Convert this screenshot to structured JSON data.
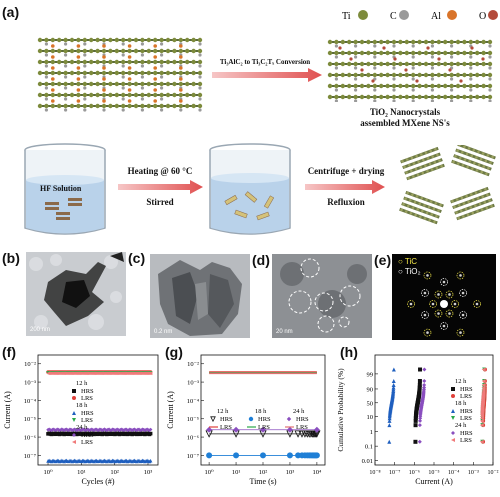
{
  "panel_a": {
    "label": "(a)",
    "legend": [
      {
        "symbol": "Ti",
        "color": "#7d8b3c"
      },
      {
        "symbol": "C",
        "color": "#9a9a9a"
      },
      {
        "symbol": "Al",
        "color": "#d9742a"
      },
      {
        "symbol": "O",
        "color": "#b34a3a"
      }
    ],
    "conversion_text": "Ti₃AlC₂ to Ti₃C₂Tₓ Conversion",
    "product_caption_1": "TiO₂ Nanocrystals",
    "product_caption_2": "assembled MXene NS's",
    "beaker_label": "HF Solution",
    "step1_top": "Heating @ 60 °C",
    "step1_bottom": "Stirred",
    "step2_top": "Centrifuge + drying",
    "step2_bottom": "Refluxion"
  },
  "panel_b": {
    "label": "(b)",
    "scale": "200 nm"
  },
  "panel_c": {
    "label": "(c)",
    "scale": "0.2 nm"
  },
  "panel_d": {
    "label": "(d)",
    "scale": "20 nm"
  },
  "panel_e": {
    "label": "(e)",
    "legend_tic": "TiC",
    "legend_tio2": "TiO₂"
  },
  "chart_data": [
    {
      "panel": "(f)",
      "type": "scatter",
      "xlabel": "Cycles (#)",
      "ylabel": "Current (A)",
      "xscale": "log",
      "yscale": "log",
      "xlim": [
        0.5,
        2000
      ],
      "ylim": [
        3e-08,
        0.03
      ],
      "xticks": [
        "10⁰",
        "10¹",
        "10²",
        "10³"
      ],
      "yticks": [
        "10⁻⁷",
        "10⁻⁶",
        "10⁻⁵",
        "10⁻⁴",
        "10⁻³",
        "10⁻²"
      ],
      "legend_groups": [
        "12 h",
        "18 h",
        "24 h"
      ],
      "series": [
        {
          "name": "HRS",
          "group": "12 h",
          "marker": "square",
          "color": "#111111",
          "y": 1.5e-06
        },
        {
          "name": "LRS",
          "group": "12 h",
          "marker": "circle",
          "color": "#e0403a",
          "y": 0.0035
        },
        {
          "name": "HRS",
          "group": "18 h",
          "marker": "triangle",
          "color": "#1f5fbf",
          "y": 5e-08
        },
        {
          "name": "LRS",
          "group": "18 h",
          "marker": "triangle-down",
          "color": "#2aa84a",
          "y": 0.0032
        },
        {
          "name": "HRS",
          "group": "24 h",
          "marker": "diamond",
          "color": "#8a4fbf",
          "y": 2.5e-06
        },
        {
          "name": "LRS",
          "group": "24 h",
          "marker": "left-triangle",
          "color": "#f07a7a",
          "y": 0.003
        }
      ]
    },
    {
      "panel": "(g)",
      "type": "scatter",
      "xlabel": "Time (s)",
      "ylabel": "Current (A)",
      "xscale": "log",
      "yscale": "log",
      "xlim": [
        0.5,
        20000
      ],
      "ylim": [
        3e-08,
        0.03
      ],
      "xticks": [
        "10⁰",
        "10¹",
        "10²",
        "10³",
        "10⁴"
      ],
      "yticks": [
        "10⁻⁷",
        "10⁻⁶",
        "10⁻⁵",
        "10⁻⁴",
        "10⁻³",
        "10⁻²"
      ],
      "legend_groups": [
        "12 h",
        "18 h",
        "24 h"
      ],
      "series": [
        {
          "name": "HRS",
          "group": "12 h",
          "marker": "triangle-down-open",
          "color": "#111111",
          "y": 1.5e-06
        },
        {
          "name": "LRS",
          "group": "12 h",
          "marker": "line",
          "color": "#e0403a",
          "y": 0.0035
        },
        {
          "name": "HRS",
          "group": "18 h",
          "marker": "circle",
          "color": "#1f7fd6",
          "y": 1e-07
        },
        {
          "name": "LRS",
          "group": "18 h",
          "marker": "line",
          "color": "#2aa84a",
          "y": 0.0032
        },
        {
          "name": "HRS",
          "group": "24 h",
          "marker": "diamond",
          "color": "#8a4fbf",
          "y": 2.5e-06
        },
        {
          "name": "LRS",
          "group": "24 h",
          "marker": "line",
          "color": "#e07070",
          "y": 0.003
        }
      ]
    },
    {
      "panel": "(h)",
      "type": "scatter",
      "xlabel": "Current (A)",
      "ylabel": "Cumulative Probability (%)",
      "xscale": "log",
      "yscale": "probability",
      "xlim": [
        1e-08,
        0.01
      ],
      "xticks": [
        "10⁻⁸",
        "10⁻⁷",
        "10⁻⁶",
        "10⁻⁵",
        "10⁻⁴",
        "10⁻³",
        "10⁻²"
      ],
      "yticks": [
        "0.01",
        "0.1",
        "1",
        "10",
        "50",
        "90",
        "99"
      ],
      "legend_groups": [
        "12 h",
        "18 h",
        "24 h"
      ],
      "series": [
        {
          "name": "HRS",
          "group": "12 h",
          "marker": "square",
          "color": "#111111",
          "x": 1.5e-06
        },
        {
          "name": "LRS",
          "group": "12 h",
          "marker": "circle",
          "color": "#e0403a",
          "x": 0.0035
        },
        {
          "name": "HRS",
          "group": "18 h",
          "marker": "triangle",
          "color": "#1f5fbf",
          "x": 7e-08
        },
        {
          "name": "LRS",
          "group": "18 h",
          "marker": "triangle-down",
          "color": "#2aa84a",
          "x": 0.0032
        },
        {
          "name": "HRS",
          "group": "24 h",
          "marker": "diamond",
          "color": "#8a4fbf",
          "x": 2.5e-06
        },
        {
          "name": "LRS",
          "group": "24 h",
          "marker": "left-triangle",
          "color": "#f07a7a",
          "x": 0.003
        }
      ]
    }
  ]
}
